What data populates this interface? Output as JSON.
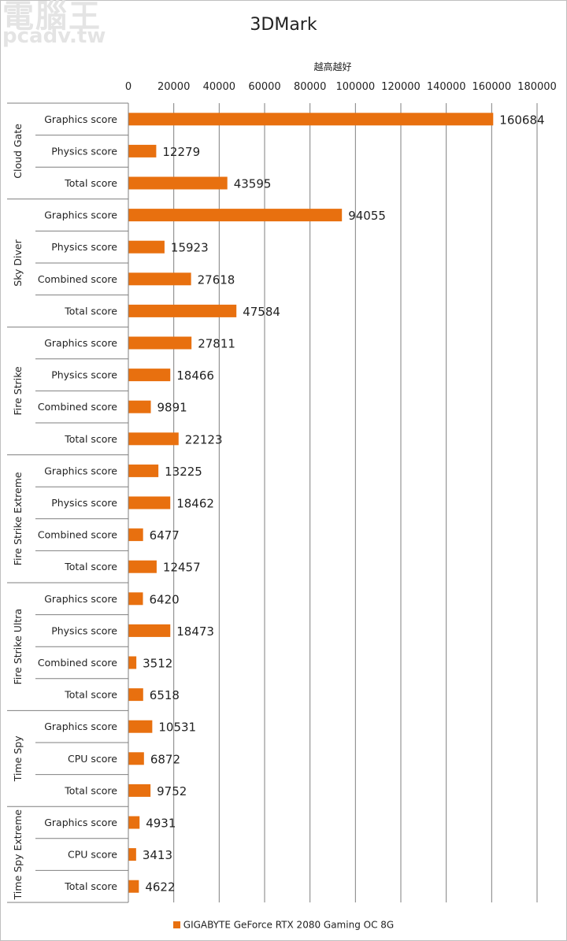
{
  "watermark": {
    "line1": "電腦王",
    "line2": "pcadv.tw"
  },
  "chart_data": {
    "type": "bar",
    "orientation": "horizontal",
    "title": "3DMark",
    "xlabel": "越高越好",
    "xlim": [
      0,
      180000
    ],
    "x_ticks": [
      0,
      20000,
      40000,
      60000,
      80000,
      100000,
      120000,
      140000,
      160000,
      180000
    ],
    "grid": true,
    "legend_position": "bottom",
    "bar_color": "#E8700F",
    "series": [
      {
        "name": "GIGABYTE GeForce RTX 2080 Gaming OC 8G"
      }
    ],
    "groups": [
      {
        "name": "Cloud Gate",
        "items": [
          {
            "label": "Graphics score",
            "value": 160684
          },
          {
            "label": "Physics score",
            "value": 12279
          },
          {
            "label": "Total score",
            "value": 43595
          }
        ]
      },
      {
        "name": "Sky Diver",
        "items": [
          {
            "label": "Graphics score",
            "value": 94055
          },
          {
            "label": "Physics score",
            "value": 15923
          },
          {
            "label": "Combined score",
            "value": 27618
          },
          {
            "label": "Total score",
            "value": 47584
          }
        ]
      },
      {
        "name": "Fire Strike",
        "items": [
          {
            "label": "Graphics score",
            "value": 27811
          },
          {
            "label": "Physics score",
            "value": 18466
          },
          {
            "label": "Combined score",
            "value": 9891
          },
          {
            "label": "Total score",
            "value": 22123
          }
        ]
      },
      {
        "name": "Fire Strike Extreme",
        "items": [
          {
            "label": "Graphics score",
            "value": 13225
          },
          {
            "label": "Physics score",
            "value": 18462
          },
          {
            "label": "Combined score",
            "value": 6477
          },
          {
            "label": "Total score",
            "value": 12457
          }
        ]
      },
      {
        "name": "Fire Strike Ultra",
        "items": [
          {
            "label": "Graphics score",
            "value": 6420
          },
          {
            "label": "Physics score",
            "value": 18473
          },
          {
            "label": "Combined score",
            "value": 3512
          },
          {
            "label": "Total score",
            "value": 6518
          }
        ]
      },
      {
        "name": "Time Spy",
        "items": [
          {
            "label": "Graphics score",
            "value": 10531
          },
          {
            "label": "CPU score",
            "value": 6872
          },
          {
            "label": "Total score",
            "value": 9752
          }
        ]
      },
      {
        "name": "Time Spy Extreme",
        "items": [
          {
            "label": "Graphics score",
            "value": 4931
          },
          {
            "label": "CPU score",
            "value": 3413
          },
          {
            "label": "Total score",
            "value": 4622
          }
        ]
      }
    ]
  }
}
